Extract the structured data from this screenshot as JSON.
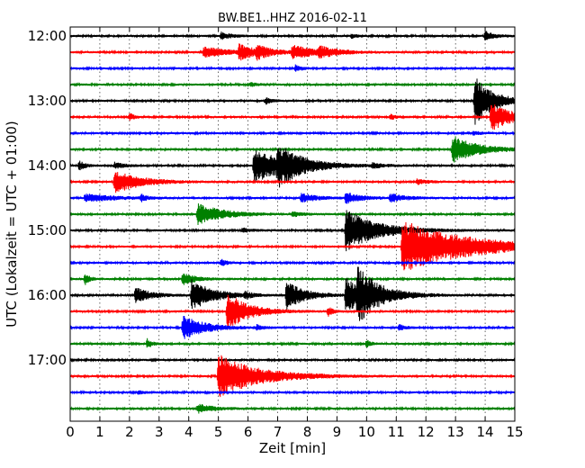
{
  "chart_data": {
    "type": "line",
    "subtype": "dayplot-seismogram",
    "title": "BW.BE1..HHZ 2016-02-11",
    "xlabel": "Zeit  [min]",
    "ylabel": "UTC (Lokalzeit = UTC + 01:00)",
    "xlim": [
      0,
      15
    ],
    "x_ticks": [
      "0",
      "1",
      "2",
      "3",
      "4",
      "5",
      "6",
      "7",
      "8",
      "9",
      "10",
      "11",
      "12",
      "13",
      "14",
      "15"
    ],
    "y_ticks": [
      "12:00",
      "13:00",
      "14:00",
      "15:00",
      "16:00",
      "17:00"
    ],
    "grid": true,
    "trace_interval_minutes": 15,
    "trace_colors": [
      "#000000",
      "#ff0000",
      "#0000ff",
      "#008000"
    ],
    "series": [
      {
        "start": "12:00",
        "events": [
          {
            "t": 5.1,
            "a": 0.25,
            "d": 0.3
          },
          {
            "t": 9.5,
            "a": 0.15,
            "d": 0.2
          },
          {
            "t": 14.0,
            "a": 0.3,
            "d": 0.3
          }
        ]
      },
      {
        "start": "12:15",
        "events": [
          {
            "t": 4.5,
            "a": 0.35,
            "d": 0.8
          },
          {
            "t": 5.7,
            "a": 0.45,
            "d": 0.6
          },
          {
            "t": 6.3,
            "a": 0.3,
            "d": 0.5
          },
          {
            "t": 7.5,
            "a": 0.45,
            "d": 0.7
          },
          {
            "t": 8.4,
            "a": 0.3,
            "d": 0.6
          }
        ]
      },
      {
        "start": "12:30",
        "events": [
          {
            "t": 7.6,
            "a": 0.2,
            "d": 0.2
          }
        ]
      },
      {
        "start": "12:45",
        "events": [
          {
            "t": 6.1,
            "a": 0.15,
            "d": 0.2
          }
        ]
      },
      {
        "start": "13:00",
        "events": [
          {
            "t": 6.6,
            "a": 0.2,
            "d": 0.2
          },
          {
            "t": 13.65,
            "a": 1.6,
            "d": 0.6
          }
        ]
      },
      {
        "start": "13:15",
        "events": [
          {
            "t": 2.0,
            "a": 0.25,
            "d": 0.15
          },
          {
            "t": 10.8,
            "a": 0.2,
            "d": 0.15
          },
          {
            "t": 14.2,
            "a": 0.9,
            "d": 0.7
          }
        ]
      },
      {
        "start": "13:30",
        "events": [
          {
            "t": 13.6,
            "a": 0.15,
            "d": 0.2
          }
        ]
      },
      {
        "start": "13:45",
        "events": [
          {
            "t": 12.9,
            "a": 0.9,
            "d": 0.8
          }
        ]
      },
      {
        "start": "14:00",
        "events": [
          {
            "t": 0.3,
            "a": 0.3,
            "d": 0.2
          },
          {
            "t": 1.5,
            "a": 0.2,
            "d": 0.3
          },
          {
            "t": 6.2,
            "a": 1.1,
            "d": 1.1
          },
          {
            "t": 7.0,
            "a": 1.0,
            "d": 0.7
          },
          {
            "t": 10.2,
            "a": 0.15,
            "d": 0.3
          }
        ]
      },
      {
        "start": "14:15",
        "events": [
          {
            "t": 1.5,
            "a": 0.8,
            "d": 0.8
          },
          {
            "t": 11.7,
            "a": 0.15,
            "d": 0.4
          }
        ]
      },
      {
        "start": "14:30",
        "events": [
          {
            "t": 0.5,
            "a": 0.25,
            "d": 1.0
          },
          {
            "t": 2.4,
            "a": 0.2,
            "d": 0.2
          },
          {
            "t": 7.8,
            "a": 0.3,
            "d": 0.5
          },
          {
            "t": 9.3,
            "a": 0.35,
            "d": 0.5
          },
          {
            "t": 10.8,
            "a": 0.25,
            "d": 0.5
          }
        ]
      },
      {
        "start": "14:45",
        "events": [
          {
            "t": 4.3,
            "a": 0.7,
            "d": 0.8
          },
          {
            "t": 7.5,
            "a": 0.15,
            "d": 0.3
          }
        ]
      },
      {
        "start": "15:00",
        "events": [
          {
            "t": 5.8,
            "a": 0.15,
            "d": 0.3
          },
          {
            "t": 9.3,
            "a": 1.4,
            "d": 1.0
          }
        ]
      },
      {
        "start": "15:15",
        "events": [
          {
            "t": 11.2,
            "a": 1.7,
            "d": 2.2
          }
        ]
      },
      {
        "start": "15:30",
        "events": [
          {
            "t": 5.1,
            "a": 0.25,
            "d": 0.15
          }
        ]
      },
      {
        "start": "15:45",
        "events": [
          {
            "t": 0.5,
            "a": 0.4,
            "d": 0.15
          },
          {
            "t": 3.8,
            "a": 0.4,
            "d": 0.4
          }
        ]
      },
      {
        "start": "16:00",
        "events": [
          {
            "t": 2.2,
            "a": 0.5,
            "d": 0.5
          },
          {
            "t": 4.1,
            "a": 1.0,
            "d": 0.7
          },
          {
            "t": 5.9,
            "a": 0.2,
            "d": 0.2
          },
          {
            "t": 7.3,
            "a": 0.9,
            "d": 0.6
          },
          {
            "t": 9.3,
            "a": 1.2,
            "d": 0.6
          },
          {
            "t": 9.7,
            "a": 1.3,
            "d": 0.8
          }
        ]
      },
      {
        "start": "16:15",
        "events": [
          {
            "t": 5.3,
            "a": 1.2,
            "d": 0.7
          },
          {
            "t": 8.7,
            "a": 0.3,
            "d": 0.15
          }
        ]
      },
      {
        "start": "16:30",
        "events": [
          {
            "t": 3.8,
            "a": 0.8,
            "d": 0.7
          },
          {
            "t": 6.3,
            "a": 0.15,
            "d": 0.2
          },
          {
            "t": 11.1,
            "a": 0.2,
            "d": 0.2
          }
        ]
      },
      {
        "start": "16:45",
        "events": [
          {
            "t": 2.6,
            "a": 0.3,
            "d": 0.15
          },
          {
            "t": 10.0,
            "a": 0.25,
            "d": 0.15
          }
        ]
      },
      {
        "start": "17:00",
        "events": []
      },
      {
        "start": "17:15",
        "events": [
          {
            "t": 5.0,
            "a": 1.4,
            "d": 1.3
          }
        ]
      },
      {
        "start": "17:30",
        "events": [
          {
            "t": 2.3,
            "a": 0.1,
            "d": 0.2
          }
        ]
      },
      {
        "start": "17:45",
        "events": [
          {
            "t": 4.3,
            "a": 0.3,
            "d": 0.5
          }
        ]
      }
    ]
  }
}
